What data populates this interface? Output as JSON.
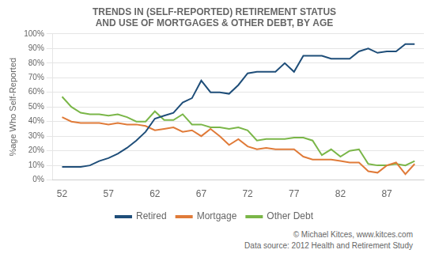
{
  "chart_data": {
    "type": "line",
    "title": [
      "TRENDS IN (SELF-REPORTED) RETIREMENT STATUS",
      "AND USE OF MORTGAGES & OTHER DEBT, BY AGE"
    ],
    "ylabel": "%age Who Self-Reported",
    "annotations": [
      "© Michael Kitces, www.kitces.com",
      "Data source: 2012 Health and Retirement Study"
    ],
    "x": [
      52,
      53,
      54,
      55,
      56,
      57,
      58,
      59,
      60,
      61,
      62,
      63,
      64,
      65,
      66,
      67,
      68,
      69,
      70,
      71,
      72,
      73,
      74,
      75,
      76,
      77,
      78,
      79,
      80,
      81,
      82,
      83,
      84,
      85,
      86,
      87,
      88,
      89,
      90
    ],
    "series": [
      {
        "name": "Retired",
        "color": "#1f4e79",
        "values": [
          9,
          9,
          9,
          10,
          13,
          15,
          18,
          22,
          27,
          33,
          42,
          44,
          46,
          53,
          56,
          68,
          60,
          60,
          59,
          65,
          73,
          74,
          74,
          74,
          80,
          74,
          85,
          85,
          85,
          83,
          83,
          83,
          88,
          90,
          87,
          88,
          88,
          93,
          93
        ]
      },
      {
        "name": "Mortgage",
        "color": "#e07b39",
        "values": [
          43,
          40,
          39,
          39,
          39,
          38,
          39,
          38,
          38,
          37,
          34,
          35,
          36,
          33,
          34,
          30,
          35,
          30,
          24,
          28,
          23,
          21,
          22,
          21,
          21,
          21,
          16,
          14,
          14,
          14,
          13,
          12,
          12,
          6,
          5,
          10,
          12,
          4,
          11
        ]
      },
      {
        "name": "Other Debt",
        "color": "#7ab648",
        "values": [
          57,
          50,
          46,
          45,
          45,
          44,
          45,
          43,
          40,
          40,
          47,
          41,
          41,
          45,
          38,
          38,
          36,
          36,
          35,
          36,
          34,
          27,
          28,
          28,
          28,
          29,
          29,
          27,
          17,
          21,
          16,
          20,
          21,
          11,
          10,
          10,
          11,
          10,
          13
        ]
      }
    ],
    "xlim": [
      51,
      91
    ],
    "xticks": [
      52,
      57,
      62,
      67,
      72,
      77,
      82,
      87
    ],
    "ylim": [
      0,
      100
    ],
    "yticks": [
      {
        "value": 0,
        "label": "0%"
      },
      {
        "value": 10,
        "label": "10%"
      },
      {
        "value": 20,
        "label": "20%"
      },
      {
        "value": 30,
        "label": "30%"
      },
      {
        "value": 40,
        "label": "40%"
      },
      {
        "value": 50,
        "label": "50%"
      },
      {
        "value": 60,
        "label": "60%"
      },
      {
        "value": 70,
        "label": "70%"
      },
      {
        "value": 80,
        "label": "80%"
      },
      {
        "value": 90,
        "label": "90%"
      },
      {
        "value": 100,
        "label": "100%"
      }
    ],
    "grid": "y",
    "legend": "bottom"
  }
}
